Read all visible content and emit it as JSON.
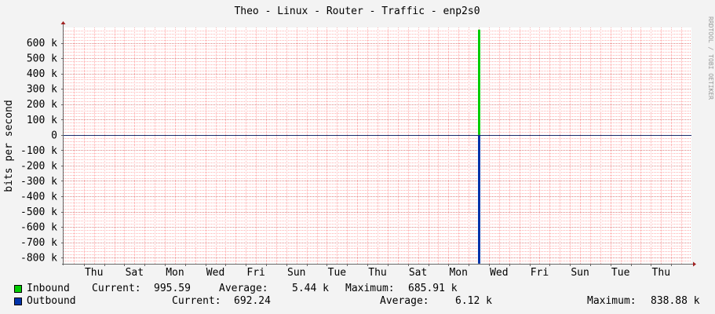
{
  "chart_data": {
    "type": "area",
    "title": "Theo - Linux - Router - Traffic - enp2s0",
    "ylabel": "bits per second",
    "watermark": "RRDTOOL / TOBI OETIKER",
    "ylim": [
      -840000,
      700000
    ],
    "y_ticks": [
      {
        "value": 600000,
        "label": "600 k"
      },
      {
        "value": 500000,
        "label": "500 k"
      },
      {
        "value": 400000,
        "label": "400 k"
      },
      {
        "value": 300000,
        "label": "300 k"
      },
      {
        "value": 200000,
        "label": "200 k"
      },
      {
        "value": 100000,
        "label": "100 k"
      },
      {
        "value": 0,
        "label": "0"
      },
      {
        "value": -100000,
        "label": "-100 k"
      },
      {
        "value": -200000,
        "label": "-200 k"
      },
      {
        "value": -300000,
        "label": "-300 k"
      },
      {
        "value": -400000,
        "label": "-400 k"
      },
      {
        "value": -500000,
        "label": "-500 k"
      },
      {
        "value": -600000,
        "label": "-600 k"
      },
      {
        "value": -700000,
        "label": "-700 k"
      },
      {
        "value": -800000,
        "label": "-800 k"
      }
    ],
    "x_labels": [
      "Thu",
      "Sat",
      "Mon",
      "Wed",
      "Fri",
      "Sun",
      "Tue",
      "Thu",
      "Sat",
      "Mon",
      "Wed",
      "Fri",
      "Sun",
      "Tue",
      "Thu"
    ],
    "x_range_days": 31,
    "x_label_start_day": 1.5,
    "x_label_step_days": 2,
    "grid": true,
    "series": [
      {
        "name": "Inbound",
        "color": "#00cc00",
        "spike_day": 20.45,
        "values_at_spike": 685910
      },
      {
        "name": "Outbound",
        "color": "#0033aa",
        "spike_day": 20.45,
        "values_at_spike": -838880
      }
    ]
  },
  "legend": {
    "inbound": {
      "name": "Inbound",
      "current_label": "Current:",
      "current": "995.59",
      "average_label": "Average:",
      "average": "5.44 k",
      "maximum_label": "Maximum:",
      "maximum": "685.91 k"
    },
    "outbound": {
      "name": "Outbound",
      "current_label": "Current:",
      "current": "692.24",
      "average_label": "Average:",
      "average": "6.12 k",
      "maximum_label": "Maximum:",
      "maximum": "838.88 k"
    }
  }
}
